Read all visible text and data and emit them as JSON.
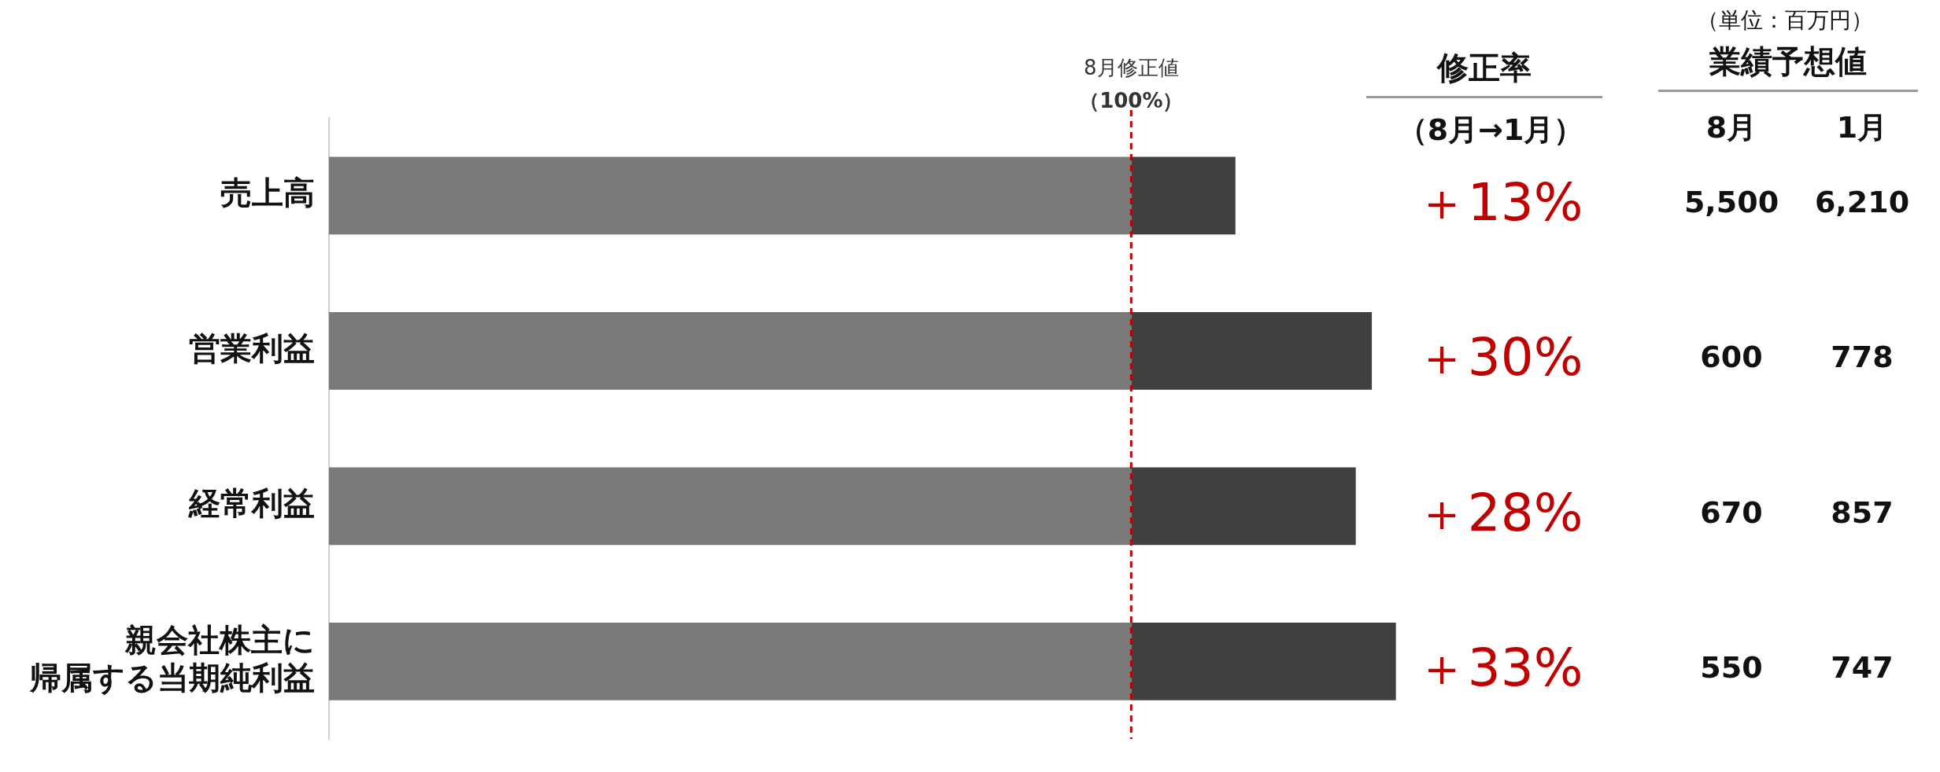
{
  "chart_data": {
    "type": "bar",
    "orientation": "horizontal",
    "stacked": true,
    "categories": [
      "売上高",
      "営業利益",
      "経常利益",
      "親会社株主に帰属する当期純利益"
    ],
    "series": [
      {
        "color": "#7a7a7a",
        "values": [
          100,
          100,
          100,
          100
        ]
      },
      {
        "color": "#404040",
        "values": [
          13,
          30,
          28,
          33
        ],
        "value_labels": [
          "＋13%",
          "＋30%",
          "＋28%",
          "＋33%"
        ]
      }
    ],
    "ref_lines": [
      {
        "axis": "x",
        "value": 100,
        "label": "8月修正値（100%）",
        "color": "#c00000",
        "line_style": "dashed"
      }
    ],
    "annotations": [
      "（単位：百万円）",
      "修正率",
      "（8月→1月）",
      "業績予想値",
      "8月",
      "1月",
      "5,500",
      "6,210",
      "600",
      "778",
      "670",
      "857",
      "550",
      "747"
    ],
    "grid": false,
    "legend": false,
    "tick_labels": "y"
  }
}
